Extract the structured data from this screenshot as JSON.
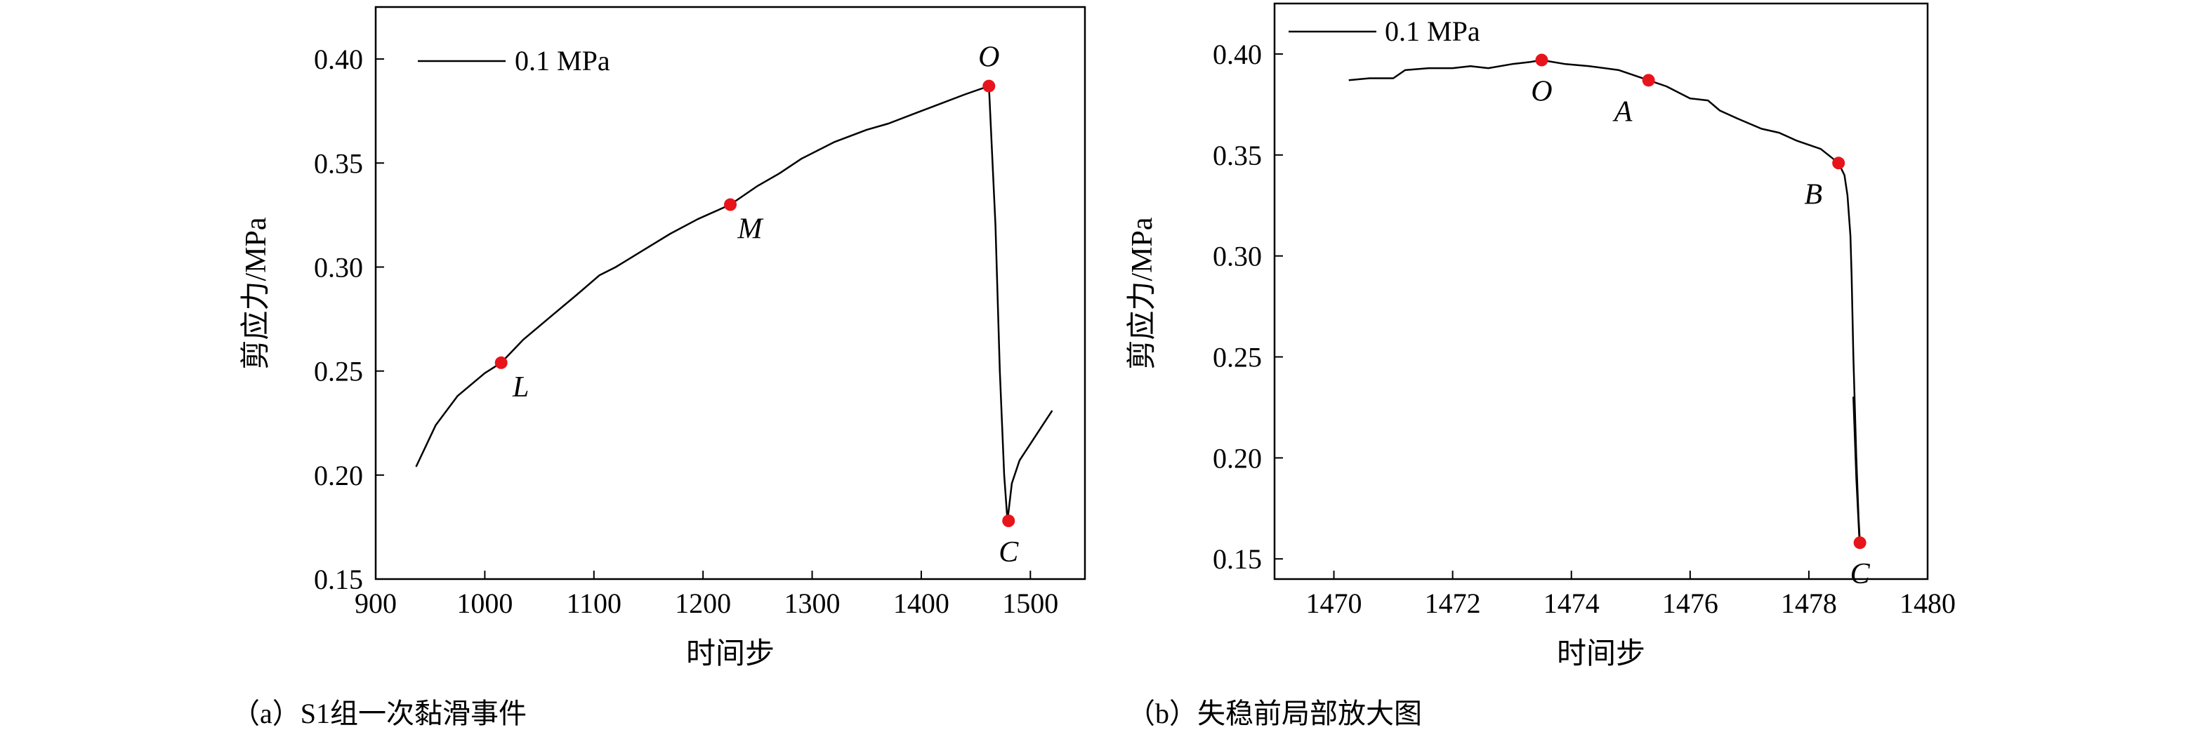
{
  "chart_data": [
    {
      "type": "line",
      "caption": "（a）S1组一次黏滑事件",
      "xlabel": "时间步",
      "ylabel": "剪应力/MPa",
      "xlim": [
        900,
        1550
      ],
      "ylim": [
        0.15,
        0.425
      ],
      "xticks": [
        900,
        1000,
        1100,
        1200,
        1300,
        1400,
        1500
      ],
      "yticks": [
        0.15,
        0.2,
        0.25,
        0.3,
        0.35,
        0.4
      ],
      "yticks_labels": [
        "0.15",
        "0.20",
        "0.25",
        "0.30",
        "0.35",
        "0.40"
      ],
      "legend": {
        "position": "top-left",
        "label": "0.1 MPa"
      },
      "series": [
        {
          "name": "0.1 MPa",
          "color": "#000000",
          "x": [
            937,
            955,
            975,
            1000,
            1015,
            1035,
            1060,
            1085,
            1105,
            1120,
            1145,
            1170,
            1195,
            1225,
            1250,
            1270,
            1290,
            1320,
            1350,
            1370,
            1395,
            1415,
            1440,
            1462,
            1468,
            1472,
            1476,
            1479,
            1483,
            1490,
            1500,
            1510,
            1520
          ],
          "y": [
            0.204,
            0.224,
            0.238,
            0.249,
            0.254,
            0.265,
            0.276,
            0.287,
            0.296,
            0.3,
            0.308,
            0.316,
            0.323,
            0.33,
            0.339,
            0.345,
            0.352,
            0.36,
            0.366,
            0.369,
            0.374,
            0.378,
            0.383,
            0.387,
            0.32,
            0.25,
            0.2,
            0.178,
            0.196,
            0.207,
            0.215,
            0.223,
            0.231
          ]
        }
      ],
      "points": [
        {
          "label": "L",
          "x": 1015,
          "y": 0.254,
          "label_pos": "below-right"
        },
        {
          "label": "M",
          "x": 1225,
          "y": 0.33,
          "label_pos": "below-right"
        },
        {
          "label": "O",
          "x": 1462,
          "y": 0.387,
          "label_pos": "above"
        },
        {
          "label": "C",
          "x": 1480,
          "y": 0.178,
          "label_pos": "below"
        }
      ],
      "point_color": "#e8141b"
    },
    {
      "type": "line",
      "caption": "（b）失稳前局部放大图",
      "xlabel": "时间步",
      "ylabel": "剪应力/MPa",
      "xlim": [
        1469,
        1480
      ],
      "ylim": [
        0.14,
        0.425
      ],
      "xticks": [
        1470,
        1472,
        1474,
        1476,
        1478,
        1480
      ],
      "yticks": [
        0.15,
        0.2,
        0.25,
        0.3,
        0.35,
        0.4
      ],
      "yticks_labels": [
        "0.15",
        "0.20",
        "0.25",
        "0.30",
        "0.35",
        "0.40"
      ],
      "legend": {
        "position": "top-left",
        "label": "0.1 MPa"
      },
      "series": [
        {
          "name": "0.1 MPa",
          "color": "#000000",
          "x": [
            1470.25,
            1470.6,
            1471.0,
            1471.2,
            1471.6,
            1472.0,
            1472.3,
            1472.6,
            1473.0,
            1473.3,
            1473.5,
            1473.9,
            1474.3,
            1474.8,
            1475.3,
            1475.6,
            1476.0,
            1476.3,
            1476.5,
            1476.8,
            1477.2,
            1477.5,
            1477.8,
            1478.2,
            1478.5,
            1478.6,
            1478.65,
            1478.7,
            1478.72,
            1478.75,
            1478.8,
            1478.85,
            1478.8,
            1478.75,
            1478.82,
            1478.86
          ],
          "y": [
            0.387,
            0.388,
            0.388,
            0.392,
            0.393,
            0.393,
            0.394,
            0.393,
            0.395,
            0.396,
            0.397,
            0.395,
            0.394,
            0.392,
            0.387,
            0.384,
            0.378,
            0.377,
            0.372,
            0.368,
            0.363,
            0.361,
            0.357,
            0.353,
            0.346,
            0.34,
            0.33,
            0.31,
            0.29,
            0.25,
            0.2,
            0.16,
            0.19,
            0.23,
            0.18,
            0.158
          ]
        }
      ],
      "points": [
        {
          "label": "O",
          "x": 1473.5,
          "y": 0.397,
          "label_pos": "below"
        },
        {
          "label": "A",
          "x": 1475.3,
          "y": 0.387,
          "label_pos": "below-left"
        },
        {
          "label": "B",
          "x": 1478.5,
          "y": 0.346,
          "label_pos": "below-left"
        },
        {
          "label": "C",
          "x": 1478.86,
          "y": 0.158,
          "label_pos": "below"
        }
      ],
      "point_color": "#e8141b"
    }
  ]
}
